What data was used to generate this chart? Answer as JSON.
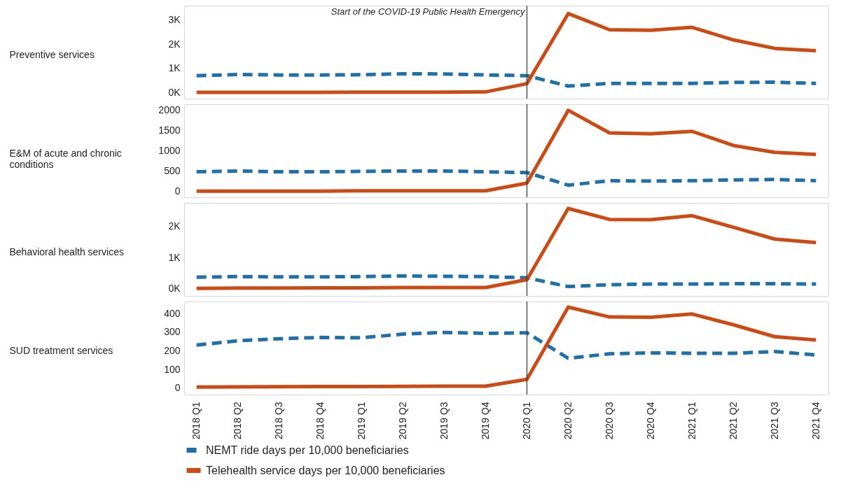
{
  "chart_data": [
    {
      "type": "line",
      "ylabel": "Preventive services",
      "categories": [
        "2018 Q1",
        "2018 Q2",
        "2018 Q3",
        "2018 Q4",
        "2019 Q1",
        "2019 Q2",
        "2019 Q3",
        "2019 Q4",
        "2020 Q1",
        "2020 Q2",
        "2020 Q3",
        "2020 Q4",
        "2021 Q1",
        "2021 Q2",
        "2021 Q3",
        "2021 Q4"
      ],
      "series": [
        {
          "color": "#1f6fa8",
          "line_style": "dashed",
          "values": [
            700,
            750,
            730,
            730,
            740,
            780,
            770,
            730,
            700,
            270,
            380,
            380,
            380,
            420,
            430,
            380
          ]
        },
        {
          "color": "#cc4a14",
          "line_style": "solid",
          "values": [
            10,
            10,
            10,
            10,
            20,
            20,
            20,
            30,
            370,
            3270,
            2600,
            2580,
            2700,
            2180,
            1830,
            1730
          ]
        }
      ],
      "ylim": [
        -250,
        3600
      ],
      "yticks": [
        {
          "value": 0,
          "label": "0K"
        },
        {
          "value": 1000,
          "label": "1K"
        },
        {
          "value": 2000,
          "label": "2K"
        },
        {
          "value": 3000,
          "label": "3K"
        }
      ],
      "tick_labels": "y",
      "grid": false,
      "ref_lines": [
        {
          "axis": "x",
          "value": "2020 Q1",
          "label": "Start of the COVID-19 Public Health Emergency"
        }
      ]
    },
    {
      "type": "line",
      "ylabel": "E&M of acute and chronic conditions",
      "categories": [
        "2018 Q1",
        "2018 Q2",
        "2018 Q3",
        "2018 Q4",
        "2019 Q1",
        "2019 Q2",
        "2019 Q3",
        "2019 Q4",
        "2020 Q1",
        "2020 Q2",
        "2020 Q3",
        "2020 Q4",
        "2021 Q1",
        "2021 Q2",
        "2021 Q3",
        "2021 Q4"
      ],
      "series": [
        {
          "color": "#1f6fa8",
          "line_style": "dashed",
          "values": [
            480,
            500,
            480,
            480,
            490,
            500,
            500,
            480,
            460,
            150,
            260,
            250,
            260,
            280,
            290,
            260
          ]
        },
        {
          "color": "#cc4a14",
          "line_style": "solid",
          "values": [
            0,
            0,
            0,
            0,
            10,
            10,
            10,
            10,
            200,
            2000,
            1440,
            1420,
            1480,
            1130,
            960,
            910
          ]
        }
      ],
      "ylim": [
        -150,
        2150
      ],
      "yticks": [
        0,
        500,
        1000,
        1500,
        2000
      ],
      "tick_labels": "y",
      "grid": false,
      "ref_lines": [
        {
          "axis": "x",
          "value": "2020 Q1"
        }
      ]
    },
    {
      "type": "line",
      "ylabel": "Behavioral health services",
      "categories": [
        "2018 Q1",
        "2018 Q2",
        "2018 Q3",
        "2018 Q4",
        "2019 Q1",
        "2019 Q2",
        "2019 Q3",
        "2019 Q4",
        "2020 Q1",
        "2020 Q2",
        "2020 Q3",
        "2020 Q4",
        "2021 Q1",
        "2021 Q2",
        "2021 Q3",
        "2021 Q4"
      ],
      "series": [
        {
          "color": "#1f6fa8",
          "line_style": "dashed",
          "values": [
            370,
            390,
            380,
            380,
            390,
            410,
            400,
            390,
            350,
            70,
            130,
            150,
            150,
            160,
            160,
            150
          ]
        },
        {
          "color": "#cc4a14",
          "line_style": "solid",
          "values": [
            10,
            20,
            20,
            30,
            30,
            40,
            40,
            40,
            290,
            2570,
            2220,
            2210,
            2340,
            1970,
            1590,
            1480
          ]
        }
      ],
      "ylim": [
        -230,
        2750
      ],
      "yticks": [
        {
          "value": 0,
          "label": "0K"
        },
        {
          "value": 1000,
          "label": "1K"
        },
        {
          "value": 2000,
          "label": "2K"
        }
      ],
      "tick_labels": "y",
      "grid": false,
      "ref_lines": [
        {
          "axis": "x",
          "value": "2020 Q1"
        }
      ]
    },
    {
      "type": "line",
      "ylabel": "SUD treatment services",
      "categories": [
        "2018 Q1",
        "2018 Q2",
        "2018 Q3",
        "2018 Q4",
        "2019 Q1",
        "2019 Q2",
        "2019 Q3",
        "2019 Q4",
        "2020 Q1",
        "2020 Q2",
        "2020 Q3",
        "2020 Q4",
        "2021 Q1",
        "2021 Q2",
        "2021 Q3",
        "2021 Q4"
      ],
      "series": [
        {
          "name": "NEMT ride days per 10,000 beneficiaries",
          "color": "#1f6fa8",
          "line_style": "dashed",
          "values": [
            231,
            254,
            265,
            272,
            270,
            290,
            299,
            294,
            297,
            160,
            184,
            189,
            187,
            187,
            196,
            178
          ]
        },
        {
          "name": "Telehealth service days per 10,000 beneficiaries",
          "color": "#cc4a14",
          "line_style": "solid",
          "values": [
            5,
            6,
            7,
            8,
            8,
            9,
            10,
            10,
            47,
            435,
            382,
            380,
            398,
            340,
            276,
            258
          ]
        }
      ],
      "ylim": [
        -35,
        465
      ],
      "yticks": [
        0,
        100,
        200,
        300,
        400
      ],
      "grid": false,
      "legend": "bottom",
      "ref_lines": [
        {
          "axis": "x",
          "value": "2020 Q1"
        }
      ]
    }
  ]
}
